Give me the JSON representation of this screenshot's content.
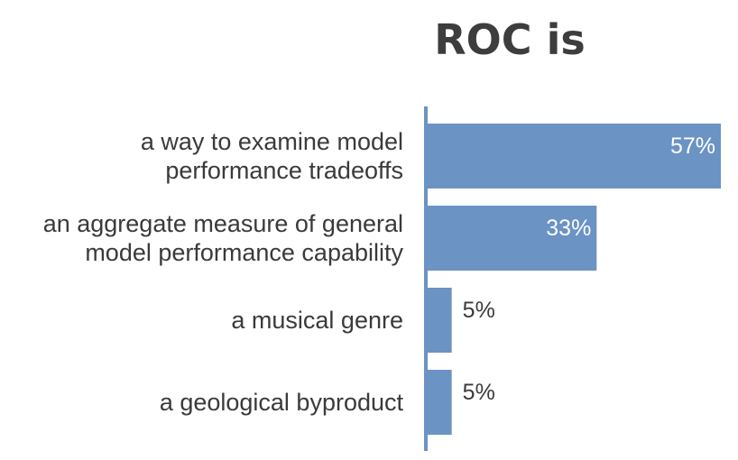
{
  "chart_data": {
    "type": "bar",
    "orientation": "horizontal",
    "title": "ROC is",
    "categories": [
      [
        "a way to examine model",
        "performance tradeoffs"
      ],
      [
        "an aggregate measure of general",
        "model performance capability"
      ],
      [
        "a musical genre"
      ],
      [
        "a geological byproduct"
      ]
    ],
    "values": [
      57,
      33,
      5,
      5
    ],
    "value_labels": [
      "57%",
      "33%",
      "5%",
      "5%"
    ],
    "xlim": [
      0,
      57
    ],
    "grid": false,
    "legend": "none",
    "bar_color": "#6b93c4",
    "axis_color": "#6b93c4"
  }
}
